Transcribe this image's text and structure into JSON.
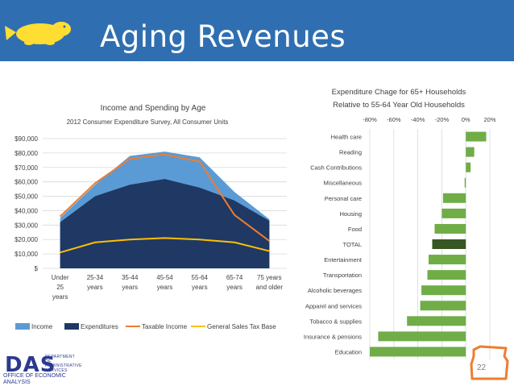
{
  "slide": {
    "title": "Aging Revenues",
    "page_number": "22",
    "logo_text": "DAS",
    "logo_dept": "DEPARTMENT OF ADMINISTRATIVE SERVICES",
    "office": "OFFICE OF ECONOMIC ANALYSIS"
  },
  "colors": {
    "banner": "#2f6fb1",
    "income": "#5b9bd5",
    "expenditures": "#1f3864",
    "taxable": "#ed7d31",
    "sales_tax": "#ffc000",
    "bar": "#70ad47",
    "bar_total": "#375623",
    "beaver": "#ffdd33"
  },
  "chart_data": [
    {
      "type": "area",
      "title": "Income and Spending by Age",
      "subtitle": "2012 Consumer Expenditure Survey, All Consumer Units",
      "categories": [
        "Under 25 years",
        "25-34 years",
        "35-44 years",
        "45-54 years",
        "55-64 years",
        "65-74 years",
        "75 years and older"
      ],
      "category_lines": [
        [
          "Under",
          "25",
          "years"
        ],
        [
          "25-34",
          "years"
        ],
        [
          "35-44",
          "years"
        ],
        [
          "45-54",
          "years"
        ],
        [
          "55-64",
          "years"
        ],
        [
          "65-74",
          "years"
        ],
        [
          "75 years",
          "and older"
        ]
      ],
      "ylim": [
        0,
        90000
      ],
      "yticks": [
        0,
        10000,
        20000,
        30000,
        40000,
        50000,
        60000,
        70000,
        80000,
        90000
      ],
      "ytick_labels": [
        "$",
        "$10,000",
        "$20,000",
        "$30,000",
        "$40,000",
        "$50,000",
        "$60,000",
        "$70,000",
        "$80,000",
        "$90,000"
      ],
      "grid": true,
      "legend_position": "bottom",
      "series": [
        {
          "name": "Income",
          "kind": "area",
          "values": [
            35000,
            58000,
            78000,
            81000,
            77000,
            53000,
            34000
          ]
        },
        {
          "name": "Expenditures",
          "kind": "area",
          "values": [
            32000,
            50000,
            58000,
            62000,
            56000,
            47000,
            33000
          ]
        },
        {
          "name": "Taxable Income",
          "kind": "line",
          "values": [
            36000,
            59000,
            76000,
            79000,
            74000,
            37000,
            19000
          ]
        },
        {
          "name": "General Sales Tax Base",
          "kind": "line",
          "values": [
            11000,
            18000,
            20000,
            21000,
            20000,
            18000,
            12000
          ]
        }
      ]
    },
    {
      "type": "bar",
      "orientation": "horizontal",
      "title_lines": [
        "Expenditure Chage for 65+ Households",
        "Relative to 55-64 Year Old Households"
      ],
      "categories": [
        "Health care",
        "Reading",
        "Cash Contributions",
        "Miscellaneous",
        "Personal care",
        "Housing",
        "Food",
        "TOTAL",
        "Entertainment",
        "Transportation",
        "Alcoholic beverages",
        "Apparel and services",
        "Tobacco & supplies",
        "Insurance & pensions",
        "Education"
      ],
      "values": [
        17,
        7,
        4,
        -1,
        -19,
        -20,
        -26,
        -28,
        -31,
        -32,
        -37,
        -38,
        -49,
        -73,
        -80
      ],
      "highlight": "TOTAL",
      "xlim": [
        -80,
        20
      ],
      "xticks": [
        -80,
        -60,
        -40,
        -20,
        0,
        20
      ],
      "xtick_labels": [
        "-80%",
        "-60%",
        "-40%",
        "-20%",
        "0%",
        "20%"
      ],
      "grid": true
    }
  ]
}
